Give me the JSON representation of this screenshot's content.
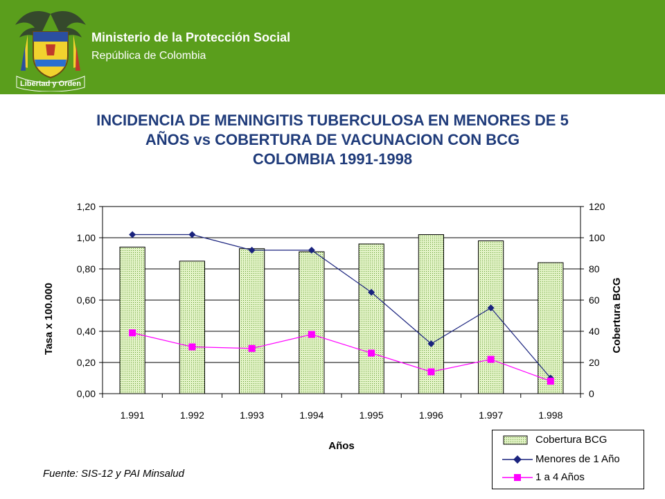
{
  "header": {
    "ministry": "Ministerio de la Protección Social",
    "republic": "República de Colombia",
    "motto": "Libertad y Orden"
  },
  "title_lines": [
    "INCIDENCIA DE MENINGITIS TUBERCULOSA EN MENORES DE 5",
    "AÑOS vs COBERTURA DE VACUNACION CON BCG",
    "COLOMBIA 1991-1998"
  ],
  "source": "Fuente: SIS-12 y PAI Minsalud",
  "colors": {
    "header_bg": "#5a9e1c",
    "title": "#1f3b7a",
    "bar_fill": "#d9efb7",
    "bar_dot": "#5c9a2a",
    "menores": "#1a237e",
    "unoacuatro": "#ff00ff"
  },
  "chart_data": {
    "type": "bar",
    "categories": [
      "1.991",
      "1.992",
      "1.993",
      "1.994",
      "1.995",
      "1.996",
      "1.997",
      "1.998"
    ],
    "xlabel": "Años",
    "ylabel": "Tasa x 100.000",
    "y2label": "Cobertura BCG",
    "ylim": [
      0,
      1.2
    ],
    "y2lim": [
      0,
      120
    ],
    "yticks": [
      "0,00",
      "0,20",
      "0,40",
      "0,60",
      "0,80",
      "1,00",
      "1,20"
    ],
    "y2ticks": [
      "0",
      "20",
      "40",
      "60",
      "80",
      "100",
      "120"
    ],
    "grid": true,
    "legend_position": "bottom-right",
    "series": [
      {
        "name": "Cobertura BCG",
        "type": "bar",
        "axis": "right",
        "values": [
          94,
          85,
          93,
          91,
          96,
          102,
          98,
          84
        ]
      },
      {
        "name": "Menores de 1 Año",
        "type": "line",
        "axis": "left",
        "marker": "diamond",
        "values": [
          1.02,
          1.02,
          0.92,
          0.92,
          0.65,
          0.32,
          0.55,
          0.1
        ]
      },
      {
        "name": "1 a 4 Años",
        "type": "line",
        "axis": "left",
        "marker": "square",
        "values": [
          0.39,
          0.3,
          0.29,
          0.38,
          0.26,
          0.14,
          0.22,
          0.08
        ]
      }
    ]
  }
}
